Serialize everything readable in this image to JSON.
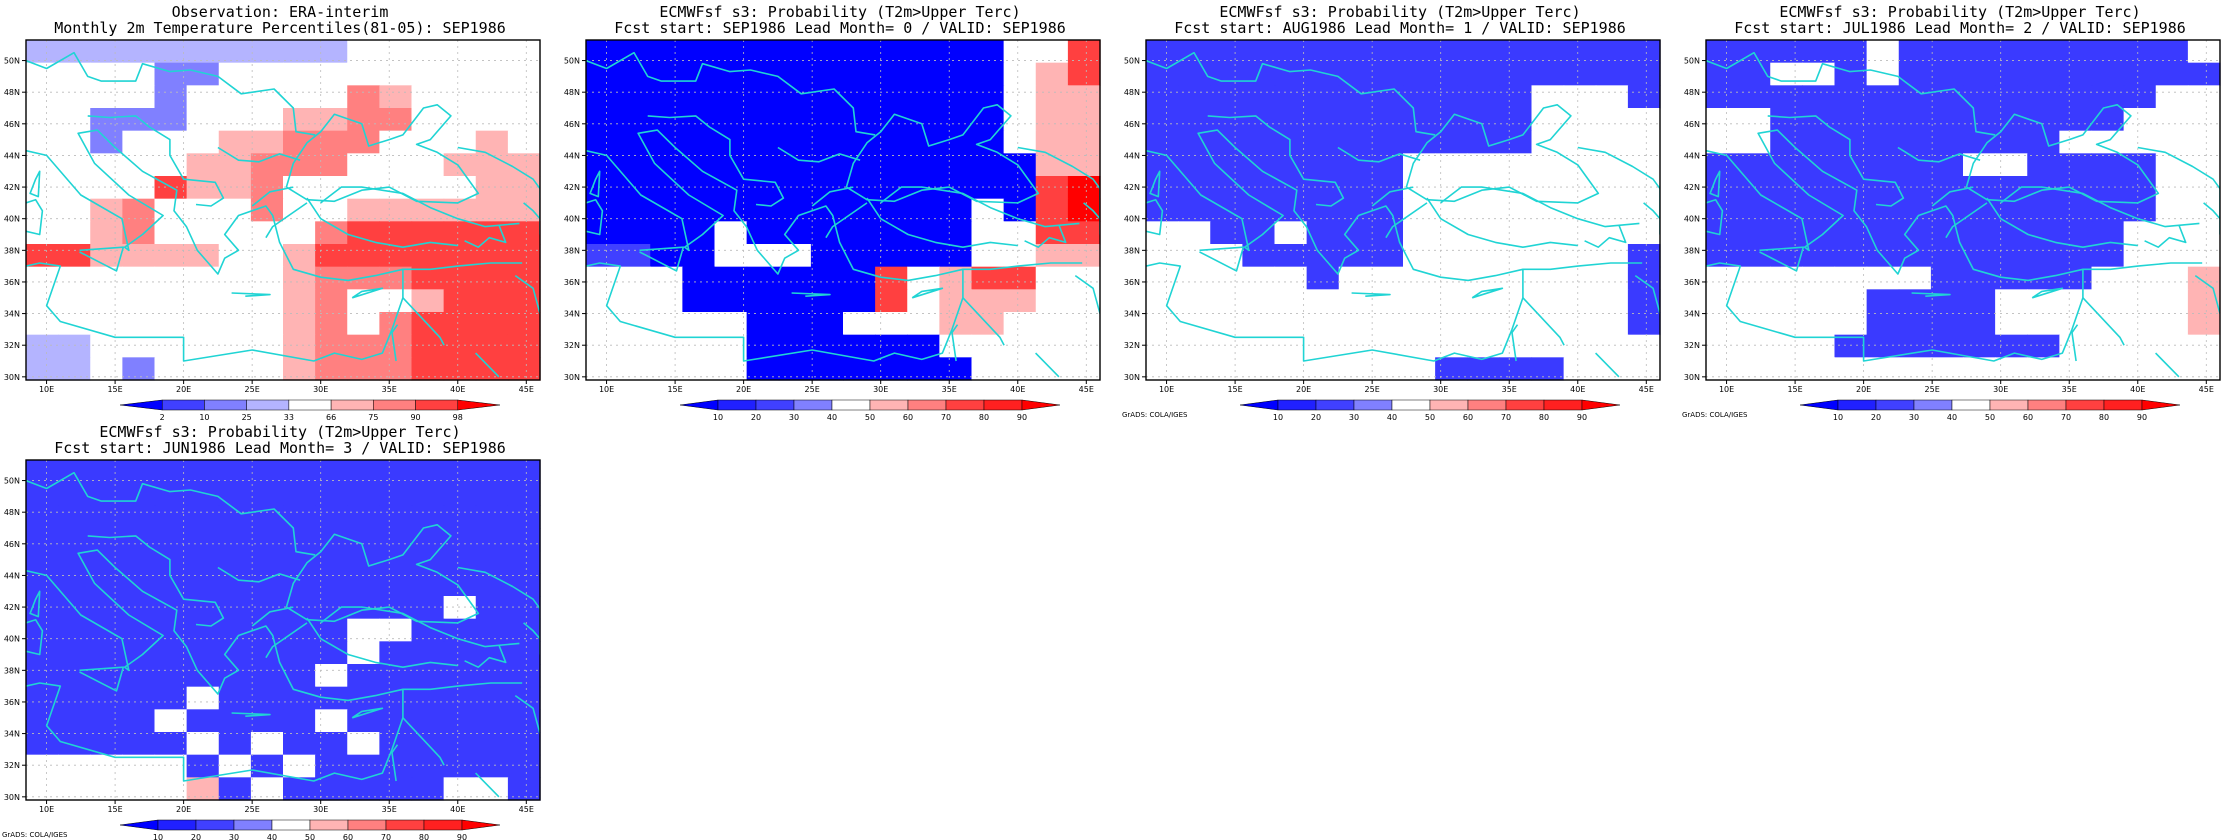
{
  "credit": "GrADS: COLA/IGES",
  "lon_labels": [
    "10E",
    "15E",
    "20E",
    "25E",
    "30E",
    "35E",
    "40E",
    "45E"
  ],
  "lat_labels": [
    "30N",
    "32N",
    "34N",
    "36N",
    "38N",
    "40N",
    "42N",
    "44N",
    "46N",
    "48N",
    "50N"
  ],
  "colors": {
    "coast": "#20d4d4",
    "frame": "#000000",
    "grid": "#bbbbbb",
    "blue_dark": "#0000ff",
    "blue_mid": "#4040ff",
    "blue_light": "#8080ff",
    "blue_pale": "#b4b4ff",
    "white": "#ffffff",
    "red_pale": "#ffb4b4",
    "red_light": "#ff8080",
    "red_mid": "#ff4040",
    "red_dark": "#ff0000"
  },
  "panels": [
    {
      "title1": "Observation: ERA-interim",
      "title2": "Monthly 2m Temperature Percentiles(81-05): SEP1986",
      "colorbar_labels": [
        "2",
        "10",
        "25",
        "33",
        "66",
        "75",
        "90",
        "98"
      ],
      "colorbar_colors": [
        "#0000ff",
        "#4040ff",
        "#8080ff",
        "#b4b4ff",
        "#ffffff",
        "#ffb4b4",
        "#ff8080",
        "#ff4040",
        "#ff0000"
      ],
      "grid": [
        "OOBBBBBBBBWWWWWW",
        "WWWWCCWWWWWWWWWW",
        "WWWWCWWWWWRPWWWW",
        "WWCCCWWWPPRRWWWW",
        "WWCWWWPPRRRWWWPW",
        "WWWWWPPRRRWWWPPP",
        "WWWWQPPRWWWWWWPP",
        "WWPRWWWRWWPPPPPP",
        "WWPRWWWWWRQQQQQQ",
        "QQPPPPWWPQQQQQQQ",
        "WWWWWWWWPRRRQQQQ",
        "WWWWWWWWPRWWPQQQ",
        "WWWWWWWWPRWRQQQQ",
        "OOWWWWWWPRRRQQQQ",
        "OOWCWWWWPRRRQQQQ"
      ],
      "legend": {
        "B": "#b4b4ff",
        "C": "#8080ff",
        "O": "#b4b4ff",
        "W": "#ffffff",
        "P": "#ffb4b4",
        "R": "#ff8080",
        "Q": "#ff4040"
      }
    },
    {
      "title1": "ECMWFsf s3: Probability (T2m>Upper Terc)",
      "title2": "Fcst start: SEP1986  Lead Month= 0 / VALID: SEP1986",
      "colorbar_labels": [
        "10",
        "20",
        "30",
        "40",
        "50",
        "60",
        "70",
        "80",
        "90"
      ],
      "colorbar_colors": [
        "#0000ff",
        "#2020ff",
        "#4040ff",
        "#8080ff",
        "#ffffff",
        "#ffb4b4",
        "#ff8080",
        "#ff4040",
        "#ff2020",
        "#ff0000"
      ],
      "grid": [
        "DDDDDDDDDDDDDWWR",
        "DDDDDDDDDDDDDWPR",
        "DDDDDDDDDDDDDWPP",
        "DDDDDDDDDDDDDWPP",
        "DDDDDDDDDDDDDWPP",
        "DDDDDDDDDDDDDDPP",
        "DDDDDDDDDDDDDDRQ",
        "DDDDDDDDDDDDWDRQ",
        "DDDDWDDDDDDDWWRR",
        "MMDDWWWDDDDDWWPP",
        "WWWDDDDDDRWPRRWW",
        "WWWDDDDDDRWPPPWW",
        "WWWWWDDDWWWPPWWW",
        "WWWWWDDDDDDWWWWW",
        "WWWWWDDDDDDDWWWW"
      ],
      "legend": {
        "D": "#0000ff",
        "M": "#4040ff",
        "W": "#ffffff",
        "P": "#ffb4b4",
        "R": "#ff4040",
        "Q": "#ff0000"
      }
    },
    {
      "title1": "ECMWFsf s3: Probability (T2m>Upper Terc)",
      "title2": "Fcst start: AUG1986  Lead Month= 1 / VALID: SEP1986",
      "colorbar_labels": [
        "10",
        "20",
        "30",
        "40",
        "50",
        "60",
        "70",
        "80",
        "90"
      ],
      "colorbar_colors": [
        "#0000ff",
        "#2020ff",
        "#4040ff",
        "#8080ff",
        "#ffffff",
        "#ffb4b4",
        "#ff8080",
        "#ff4040",
        "#ff2020",
        "#ff0000"
      ],
      "grid": [
        "DDDDDDDDDDDDDDDD",
        "DDDDDDDDDDDDDDDD",
        "DDDDDDDDDDDDWWWD",
        "DDDDDDDDDDDDWWWW",
        "DDDDDDDDDDDDWWWW",
        "DDDDDDDDWWWWWWWW",
        "DDDDDDDDWWWWWWWW",
        "DDDDDDDDWWWWWWWW",
        "WWDDWDDDWWWWWWWW",
        "WWWDDDDDWWWWWWWD",
        "WWWWWDWWWWWWWWWD",
        "WWWWWWWWWWWWWWWD",
        "WWWWWWWWWWWWWWWD",
        "WWWWWWWWWWWWWWWW",
        "WWWWWWWWWDDDDWWW"
      ],
      "legend": {
        "D": "#3a3aff",
        "W": "#ffffff"
      }
    },
    {
      "title1": "ECMWFsf s3: Probability (T2m>Upper Terc)",
      "title2": "Fcst start: JUL1986  Lead Month= 2 / VALID: SEP1986",
      "colorbar_labels": [
        "10",
        "20",
        "30",
        "40",
        "50",
        "60",
        "70",
        "80",
        "90"
      ],
      "colorbar_colors": [
        "#0000ff",
        "#2020ff",
        "#4040ff",
        "#8080ff",
        "#ffffff",
        "#ffb4b4",
        "#ff8080",
        "#ff4040",
        "#ff2020",
        "#ff0000"
      ],
      "grid": [
        "DDDDDWDDDDDDDDDW",
        "DDWWDWDDDDDDDDDD",
        "DDDDDDDDDDDDDDWW",
        "WWDDDDDDDDDDDWWW",
        "WWDDDDDDDDDWWWWW",
        "DDDDDDDDWWDDDDWW",
        "DDDDDDDDDDDDDDWW",
        "DDDDDDDDDDDDDDWW",
        "DDDDDDDDDDDDDWWW",
        "DDDDDDDDDDDDDWWW",
        "WWWWWWWDDDDDWWWP",
        "WWWWWDDDDWWWWWWP",
        "WWWWWDDDDWWWWWWP",
        "WWWWDDDDDDDWWWWW",
        "WWWWWWWWWWWWWWWW"
      ],
      "legend": {
        "D": "#3a3aff",
        "W": "#ffffff",
        "P": "#ffb4b4"
      }
    },
    {
      "title1": "ECMWFsf s3: Probability (T2m>Upper Terc)",
      "title2": "Fcst start: JUN1986  Lead Month= 3 / VALID: SEP1986",
      "colorbar_labels": [
        "10",
        "20",
        "30",
        "40",
        "50",
        "60",
        "70",
        "80",
        "90"
      ],
      "colorbar_colors": [
        "#0000ff",
        "#2020ff",
        "#4040ff",
        "#8080ff",
        "#ffffff",
        "#ffb4b4",
        "#ff8080",
        "#ff4040",
        "#ff2020",
        "#ff0000"
      ],
      "grid": [
        "DDDDDDDDDDDDDDDD",
        "DDDDDDDDDDDDDDDD",
        "DDDDDDDDDDDDDDDD",
        "DDDDDDDDDDDDDDDD",
        "DDDDDDDDDDDDDDDD",
        "DDDDDDDDDDDDDDDD",
        "DDDDDDDDDDDDDWDD",
        "DDDDDDDDDDWWDDDD",
        "DDDDDDDDDDWDDDDD",
        "DDDDDDDDDWDDDDDD",
        "DDDDDWDDDDDDDDDD",
        "DDDDWDDDDWDDDDDD",
        "DDDDDWDWDDWDDDDD",
        "WWWWWDWDWDDDDDDD",
        "WWWWWPDWDDDDDWWD"
      ],
      "legend": {
        "D": "#3a3aff",
        "W": "#ffffff",
        "P": "#ffb4b4"
      }
    }
  ]
}
